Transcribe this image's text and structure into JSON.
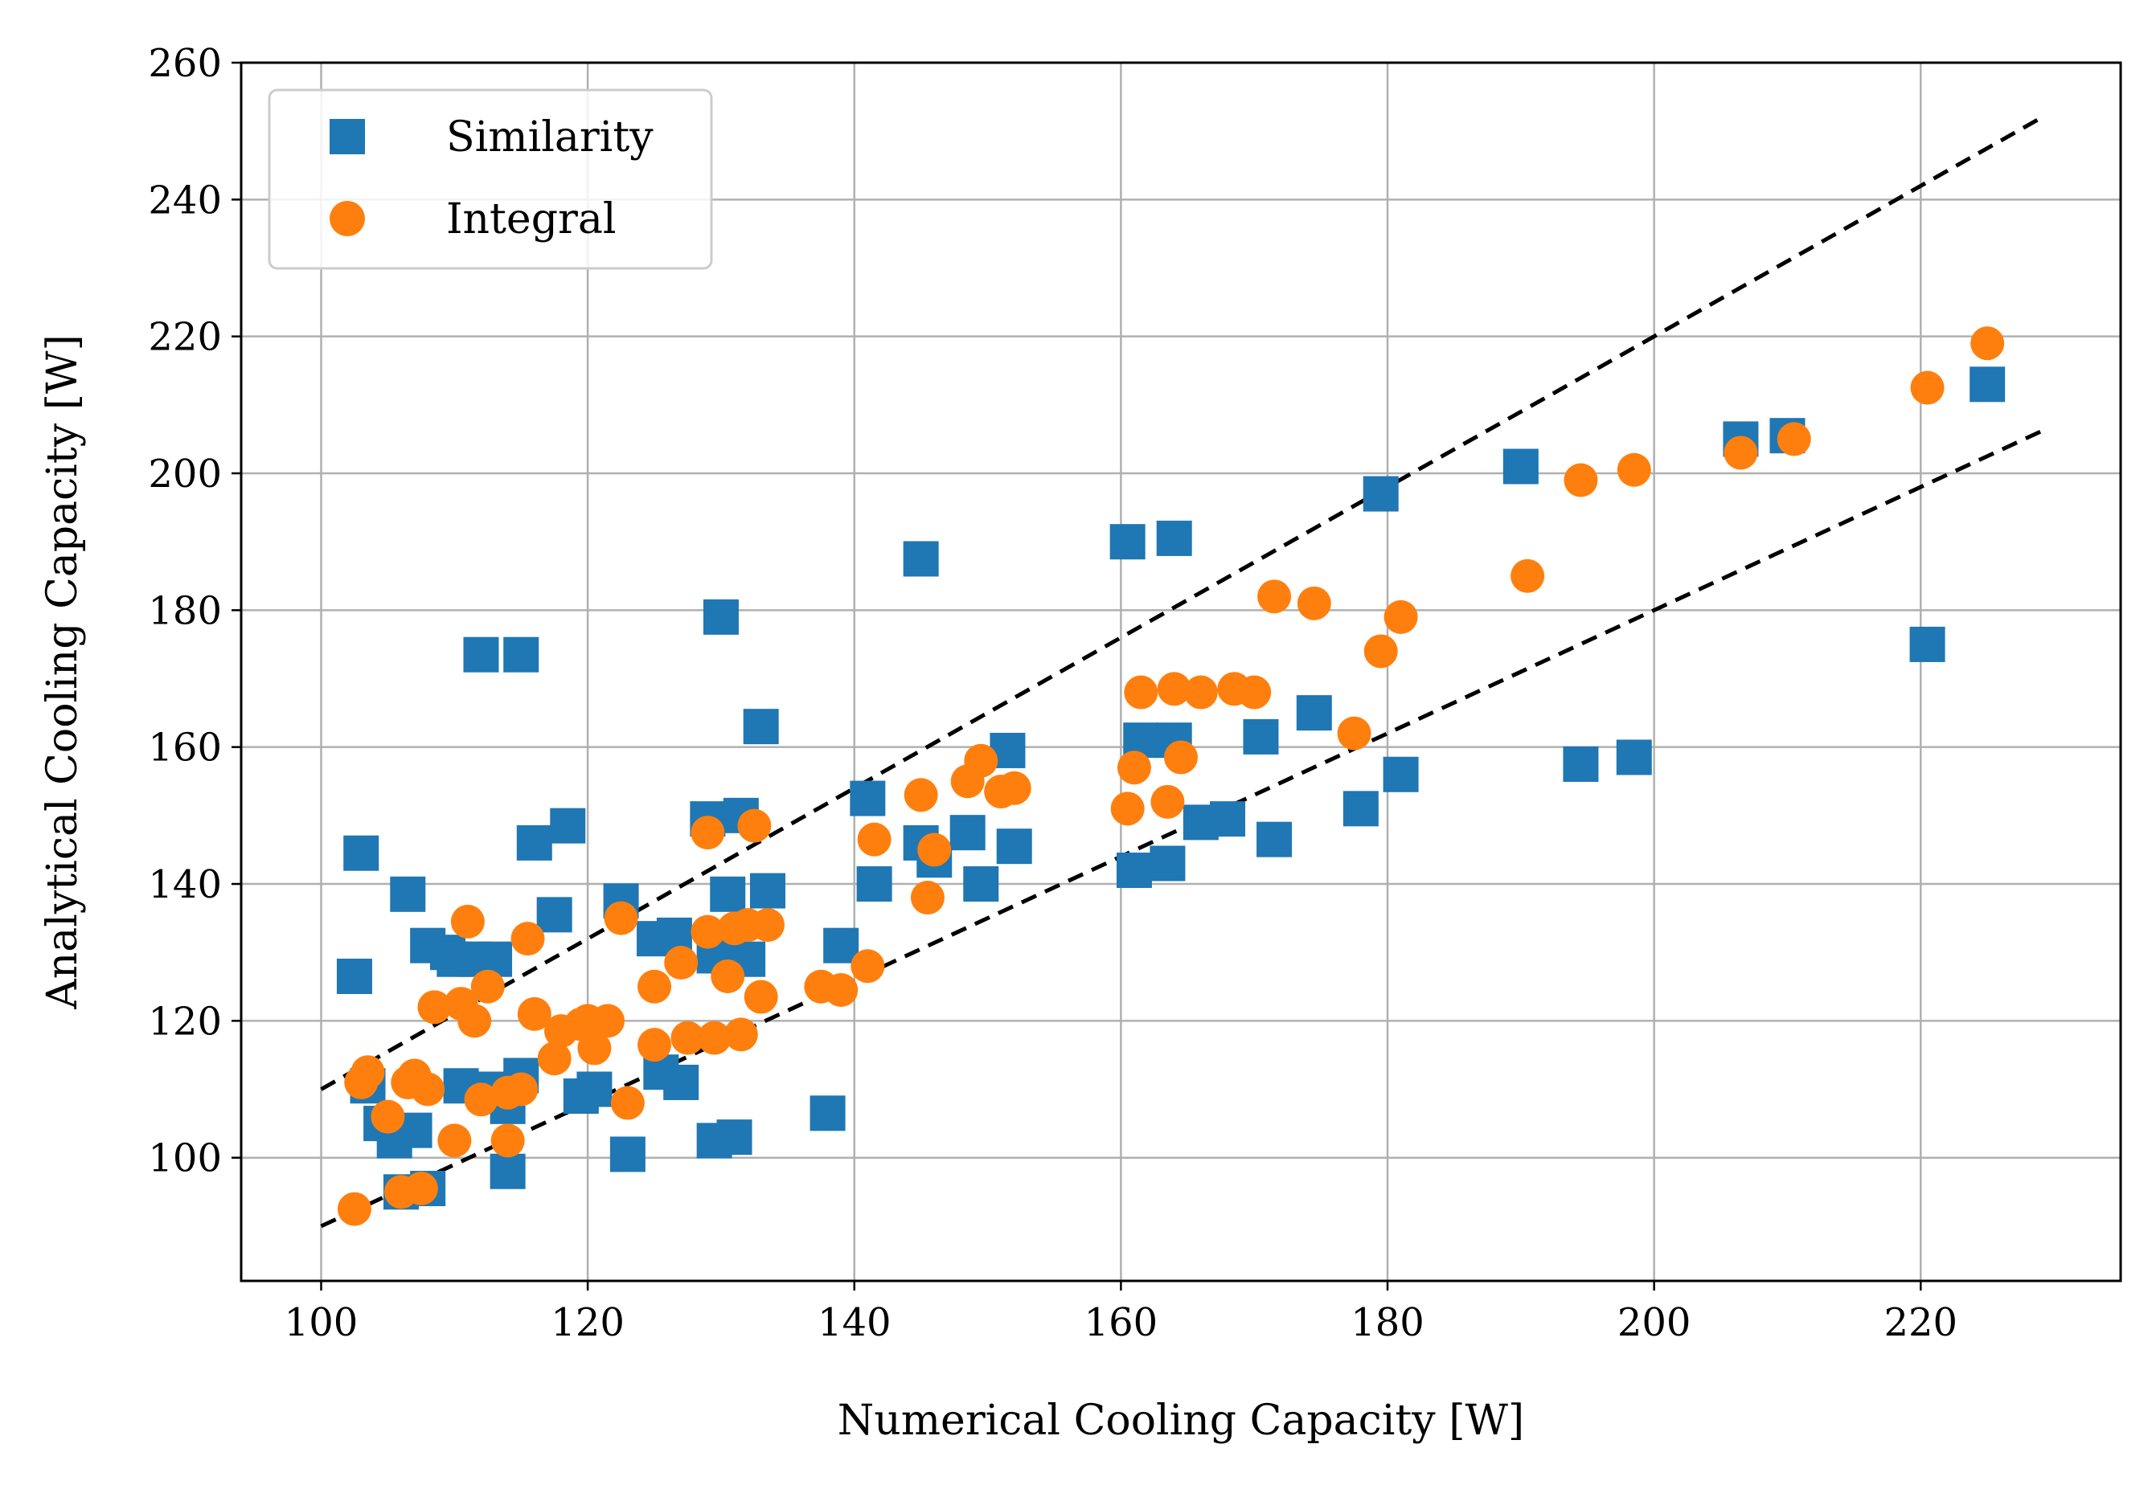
{
  "chart_data": {
    "type": "scatter",
    "xlabel": "Numerical Cooling Capacity [W]",
    "ylabel": "Analytical Cooling Capacity [W]",
    "xlim": [
      94,
      235
    ],
    "ylim": [
      82,
      260
    ],
    "xticks": [
      100,
      120,
      140,
      160,
      180,
      200,
      220
    ],
    "yticks": [
      100,
      120,
      140,
      160,
      180,
      200,
      220,
      240,
      260
    ],
    "grid": true,
    "legend_position": "top-left",
    "series": [
      {
        "name": "Similarity",
        "marker": "square",
        "color": "#1f77b4",
        "points": [
          [
            102.5,
            126.5
          ],
          [
            103,
            144.5
          ],
          [
            103.5,
            110.5
          ],
          [
            104.5,
            105
          ],
          [
            105.5,
            102.5
          ],
          [
            106,
            95
          ],
          [
            106.5,
            138.5
          ],
          [
            107,
            104
          ],
          [
            108,
            131
          ],
          [
            108,
            95.5
          ],
          [
            109.5,
            130
          ],
          [
            110,
            129
          ],
          [
            110.5,
            110.5
          ],
          [
            111.5,
            129
          ],
          [
            112,
            173.5
          ],
          [
            112.5,
            110
          ],
          [
            113,
            129
          ],
          [
            114,
            107.5
          ],
          [
            114,
            98
          ],
          [
            115,
            112
          ],
          [
            115,
            173.5
          ],
          [
            116,
            146
          ],
          [
            117.5,
            135.5
          ],
          [
            118.5,
            148.5
          ],
          [
            119.5,
            109
          ],
          [
            120.5,
            110
          ],
          [
            122.5,
            137.5
          ],
          [
            123,
            100.5
          ],
          [
            125,
            132
          ],
          [
            125.5,
            112.5
          ],
          [
            126.5,
            132.5
          ],
          [
            127,
            111
          ],
          [
            129,
            149.5
          ],
          [
            129.5,
            129.5
          ],
          [
            129.5,
            102.5
          ],
          [
            130,
            179
          ],
          [
            130.5,
            138.5
          ],
          [
            131,
            103
          ],
          [
            131.5,
            150
          ],
          [
            132,
            129
          ],
          [
            133,
            163
          ],
          [
            133.5,
            139
          ],
          [
            138,
            106.5
          ],
          [
            139,
            131
          ],
          [
            141,
            152.5
          ],
          [
            141.5,
            140
          ],
          [
            145,
            187.5
          ],
          [
            145,
            146
          ],
          [
            146,
            143.5
          ],
          [
            148.5,
            147.5
          ],
          [
            149.5,
            140
          ],
          [
            151.5,
            159.5
          ],
          [
            152,
            145.5
          ],
          [
            160.5,
            190
          ],
          [
            161,
            142
          ],
          [
            161.5,
            161
          ],
          [
            163.5,
            143
          ],
          [
            164,
            161
          ],
          [
            164,
            190.5
          ],
          [
            166,
            149
          ],
          [
            168,
            149.5
          ],
          [
            170.5,
            161.5
          ],
          [
            171.5,
            146.5
          ],
          [
            174.5,
            165
          ],
          [
            178,
            151
          ],
          [
            179.5,
            197
          ],
          [
            181,
            156
          ],
          [
            190,
            201
          ],
          [
            194.5,
            157.5
          ],
          [
            198.5,
            158.5
          ],
          [
            206.5,
            205
          ],
          [
            210,
            205.5
          ],
          [
            220.5,
            175
          ],
          [
            225,
            213
          ]
        ]
      },
      {
        "name": "Integral",
        "marker": "circle",
        "color": "#ff7f0e",
        "points": [
          [
            102.5,
            92.5
          ],
          [
            103,
            111
          ],
          [
            103.5,
            112.5
          ],
          [
            105,
            106
          ],
          [
            106,
            95
          ],
          [
            106.5,
            111
          ],
          [
            107,
            112
          ],
          [
            107.5,
            95.5
          ],
          [
            108,
            110
          ],
          [
            108.5,
            122
          ],
          [
            110,
            102.5
          ],
          [
            110.5,
            122.5
          ],
          [
            111,
            134.5
          ],
          [
            111.5,
            120
          ],
          [
            112,
            108.5
          ],
          [
            112.5,
            125
          ],
          [
            114,
            102.5
          ],
          [
            114,
            109.5
          ],
          [
            115,
            110
          ],
          [
            115.5,
            132
          ],
          [
            116,
            121
          ],
          [
            117.5,
            114.5
          ],
          [
            118,
            118.5
          ],
          [
            119.5,
            119.5
          ],
          [
            120,
            120
          ],
          [
            120.5,
            116
          ],
          [
            121.5,
            120
          ],
          [
            122.5,
            135
          ],
          [
            123,
            108
          ],
          [
            125,
            125
          ],
          [
            125,
            116.5
          ],
          [
            127,
            128.5
          ],
          [
            127.5,
            117.5
          ],
          [
            129,
            133
          ],
          [
            129,
            147.5
          ],
          [
            129.5,
            117.5
          ],
          [
            130.5,
            126.5
          ],
          [
            131,
            133.5
          ],
          [
            131.5,
            118
          ],
          [
            132,
            134
          ],
          [
            132.5,
            148.5
          ],
          [
            133,
            123.5
          ],
          [
            133.5,
            134
          ],
          [
            137.5,
            125
          ],
          [
            139,
            124.5
          ],
          [
            141,
            128
          ],
          [
            141.5,
            146.5
          ],
          [
            145,
            153
          ],
          [
            145.5,
            138
          ],
          [
            146,
            145
          ],
          [
            148.5,
            155
          ],
          [
            149.5,
            158
          ],
          [
            151,
            153.5
          ],
          [
            152,
            154
          ],
          [
            160.5,
            151
          ],
          [
            161,
            157
          ],
          [
            161.5,
            168
          ],
          [
            163.5,
            152
          ],
          [
            164,
            168.5
          ],
          [
            164.5,
            158.5
          ],
          [
            166,
            168
          ],
          [
            168.5,
            168.5
          ],
          [
            170,
            168
          ],
          [
            171.5,
            182
          ],
          [
            174.5,
            181
          ],
          [
            177.5,
            162
          ],
          [
            179.5,
            174
          ],
          [
            181,
            179
          ],
          [
            190.5,
            185
          ],
          [
            194.5,
            199
          ],
          [
            198.5,
            200.5
          ],
          [
            206.5,
            203
          ],
          [
            210.5,
            205
          ],
          [
            220.5,
            212.5
          ],
          [
            225,
            219
          ]
        ]
      }
    ],
    "reference_lines": [
      {
        "style": "dashed",
        "color": "#000000",
        "x": [
          100,
          229
        ],
        "y": [
          110,
          251.9
        ]
      },
      {
        "style": "dashed",
        "color": "#000000",
        "x": [
          100,
          229
        ],
        "y": [
          90,
          206.1
        ]
      }
    ]
  }
}
